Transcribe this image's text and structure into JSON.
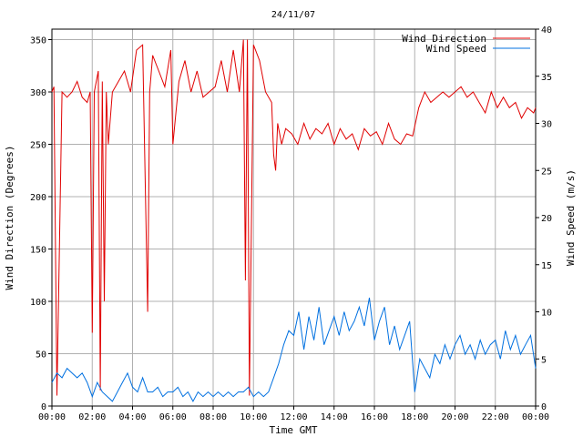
{
  "chart_data": {
    "type": "line",
    "title": "24/11/07",
    "xlabel": "Time GMT",
    "ylabel_left": "Wind Direction (Degrees)",
    "ylabel_right": "Wind Speed (m/s)",
    "xlim_hours": [
      0,
      24
    ],
    "ylim_left": [
      0,
      360
    ],
    "ylim_right": [
      0,
      40
    ],
    "x_ticks": [
      "00:00",
      "02:00",
      "04:00",
      "06:00",
      "08:00",
      "10:00",
      "12:00",
      "14:00",
      "16:00",
      "18:00",
      "20:00",
      "22:00",
      "00:00"
    ],
    "y_ticks_left": [
      "0",
      "50",
      "100",
      "150",
      "200",
      "250",
      "300",
      "350"
    ],
    "y_ticks_right": [
      "0",
      "5",
      "10",
      "15",
      "20",
      "25",
      "30",
      "35",
      "40"
    ],
    "grid": true,
    "legend_position": "top-right",
    "colors": {
      "direction": "#e00000",
      "speed": "#0070e0",
      "grid": "#b0b0b0"
    },
    "series": [
      {
        "name": "Wind Direction",
        "axis": "left",
        "x": [
          0.0,
          0.1,
          0.25,
          0.5,
          0.75,
          1.0,
          1.25,
          1.5,
          1.75,
          1.9,
          2.0,
          2.1,
          2.3,
          2.4,
          2.5,
          2.6,
          2.7,
          2.8,
          3.0,
          3.3,
          3.6,
          3.9,
          4.2,
          4.5,
          4.75,
          4.85,
          5.0,
          5.3,
          5.6,
          5.9,
          6.0,
          6.3,
          6.6,
          6.9,
          7.2,
          7.5,
          7.8,
          8.1,
          8.4,
          8.7,
          9.0,
          9.3,
          9.5,
          9.6,
          9.7,
          9.8,
          10.0,
          10.3,
          10.6,
          10.9,
          11.0,
          11.1,
          11.2,
          11.4,
          11.6,
          11.9,
          12.2,
          12.5,
          12.8,
          13.1,
          13.4,
          13.7,
          14.0,
          14.3,
          14.6,
          14.9,
          15.2,
          15.5,
          15.8,
          16.1,
          16.4,
          16.7,
          17.0,
          17.3,
          17.6,
          17.9,
          18.2,
          18.5,
          18.8,
          19.1,
          19.4,
          19.7,
          20.0,
          20.3,
          20.6,
          20.9,
          21.2,
          21.5,
          21.8,
          22.1,
          22.4,
          22.7,
          23.0,
          23.3,
          23.6,
          23.9,
          24.0
        ],
        "values": [
          300,
          305,
          10,
          300,
          295,
          300,
          310,
          295,
          290,
          300,
          70,
          300,
          320,
          15,
          310,
          100,
          300,
          250,
          300,
          310,
          320,
          300,
          340,
          345,
          90,
          300,
          335,
          320,
          305,
          340,
          250,
          310,
          330,
          300,
          320,
          295,
          300,
          305,
          330,
          300,
          340,
          300,
          350,
          120,
          350,
          10,
          345,
          330,
          300,
          290,
          240,
          225,
          270,
          250,
          265,
          260,
          250,
          270,
          255,
          265,
          260,
          270,
          250,
          265,
          255,
          260,
          245,
          265,
          258,
          262,
          250,
          270,
          255,
          250,
          260,
          258,
          285,
          300,
          290,
          295,
          300,
          295,
          300,
          305,
          295,
          300,
          290,
          280,
          300,
          285,
          295,
          285,
          290,
          275,
          285,
          280,
          285
        ]
      },
      {
        "name": "Wind Speed",
        "axis": "right",
        "x": [
          0.0,
          0.25,
          0.5,
          0.75,
          1.0,
          1.25,
          1.5,
          1.75,
          2.0,
          2.25,
          2.5,
          2.75,
          3.0,
          3.25,
          3.5,
          3.75,
          4.0,
          4.25,
          4.5,
          4.75,
          5.0,
          5.25,
          5.5,
          5.75,
          6.0,
          6.25,
          6.5,
          6.75,
          7.0,
          7.25,
          7.5,
          7.75,
          8.0,
          8.25,
          8.5,
          8.75,
          9.0,
          9.25,
          9.5,
          9.75,
          10.0,
          10.25,
          10.5,
          10.75,
          11.0,
          11.25,
          11.5,
          11.75,
          12.0,
          12.25,
          12.5,
          12.75,
          13.0,
          13.25,
          13.5,
          13.75,
          14.0,
          14.25,
          14.5,
          14.75,
          15.0,
          15.25,
          15.5,
          15.75,
          16.0,
          16.25,
          16.5,
          16.75,
          17.0,
          17.25,
          17.5,
          17.75,
          18.0,
          18.25,
          18.5,
          18.75,
          19.0,
          19.25,
          19.5,
          19.75,
          20.0,
          20.25,
          20.5,
          20.75,
          21.0,
          21.25,
          21.5,
          21.75,
          22.0,
          22.25,
          22.5,
          22.75,
          23.0,
          23.25,
          23.5,
          23.75,
          24.0
        ],
        "values": [
          2.5,
          3.5,
          3.0,
          4.0,
          3.5,
          3.0,
          3.5,
          2.5,
          1.0,
          2.5,
          1.5,
          1.0,
          0.5,
          1.5,
          2.5,
          3.5,
          2.0,
          1.5,
          3.0,
          1.5,
          1.5,
          2.0,
          1.0,
          1.5,
          1.5,
          2.0,
          1.0,
          1.5,
          0.5,
          1.5,
          1.0,
          1.5,
          1.0,
          1.5,
          1.0,
          1.5,
          1.0,
          1.5,
          1.5,
          2.0,
          1.0,
          1.5,
          1.0,
          1.5,
          3.0,
          4.5,
          6.5,
          8.0,
          7.5,
          10.0,
          6.0,
          9.5,
          7.0,
          10.5,
          6.5,
          8.0,
          9.5,
          7.5,
          10.0,
          8.0,
          9.0,
          10.5,
          8.5,
          11.5,
          7.0,
          9.0,
          10.5,
          6.5,
          8.5,
          6.0,
          7.5,
          9.0,
          1.5,
          5.0,
          4.0,
          3.0,
          5.5,
          4.5,
          6.5,
          5.0,
          6.5,
          7.5,
          5.5,
          6.5,
          5.0,
          7.0,
          5.5,
          6.5,
          7.0,
          5.0,
          8.0,
          6.0,
          7.5,
          5.5,
          6.5,
          7.5,
          4.0
        ]
      }
    ]
  }
}
